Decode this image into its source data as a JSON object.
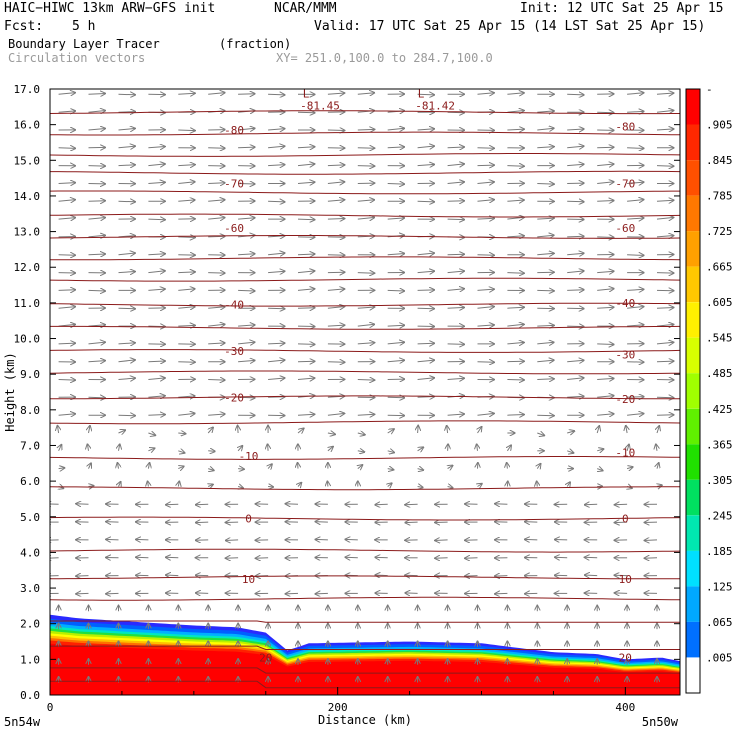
{
  "header": {
    "model": "HAIC−HIWC 13km ARW−GFS init",
    "org": "NCAR/MMM",
    "init": "Init: 12 UTC Sat 25 Apr 15",
    "fcst_label": "Fcst:",
    "fcst_value": "5 h",
    "valid": "Valid: 17 UTC Sat 25 Apr 15 (14 LST Sat 25 Apr 15)",
    "field": "Boundary Layer Tracer",
    "field_unit": "(fraction)",
    "overlay": "Circulation vectors",
    "xsect": "XY= 251.0,100.0 to 284.7,100.0"
  },
  "axes": {
    "ylabel": "Height (km)",
    "xlabel": "Distance (km)",
    "left_endpoint": "5n54w",
    "right_endpoint": "5n50w"
  },
  "colors": {
    "contour": "#8b1a1a",
    "vector": "#7a7a7a",
    "scale": [
      "#ffffff",
      "#7e0000",
      "#e0e0ff",
      "#3030ff",
      "#00c8ff",
      "#00ffa0",
      "#30e000",
      "#c8ff00",
      "#ffff00",
      "#ffb000",
      "#ff5000",
      "#ff0000"
    ]
  },
  "chart_data": {
    "type": "heatmap",
    "title": "Boundary Layer Tracer",
    "xlabel": "Distance (km)",
    "ylabel": "Height (km)",
    "xlim": [
      0,
      438
    ],
    "ylim": [
      0.0,
      17.0
    ],
    "x_ticks": [
      "0",
      "200",
      "400"
    ],
    "y_ticks": [
      "0.0",
      "1.0",
      "2.0",
      "3.0",
      "4.0",
      "5.0",
      "6.0",
      "7.0",
      "8.0",
      "9.0",
      "10.0",
      "11.0",
      "12.0",
      "13.0",
      "14.0",
      "15.0",
      "16.0",
      "17.0"
    ],
    "colorbar_labels": [
      "-",
      ".905",
      ".845",
      ".785",
      ".725",
      ".665",
      ".605",
      ".545",
      ".485",
      ".425",
      ".365",
      ".305",
      ".245",
      ".185",
      ".125",
      ".065",
      ".005"
    ],
    "tracer_top_km": {
      "x": [
        0,
        20,
        60,
        100,
        130,
        150,
        165,
        180,
        250,
        300,
        350,
        380,
        400,
        425,
        438
      ],
      "y": [
        2.25,
        2.15,
        2.05,
        1.95,
        1.9,
        1.75,
        1.25,
        1.45,
        1.5,
        1.45,
        1.2,
        1.15,
        1.0,
        1.05,
        0.95
      ]
    },
    "temperature_contours_c": {
      "labels": [
        {
          "text": "-80",
          "x": 128,
          "y": 15.85
        },
        {
          "text": "-80",
          "x": 400,
          "y": 15.95
        },
        {
          "text": "-70",
          "x": 128,
          "y": 14.35
        },
        {
          "text": "-70",
          "x": 400,
          "y": 14.35
        },
        {
          "text": "-60",
          "x": 128,
          "y": 13.1
        },
        {
          "text": "-60",
          "x": 400,
          "y": 13.1
        },
        {
          "text": "-40",
          "x": 128,
          "y": 10.95
        },
        {
          "text": "-40",
          "x": 400,
          "y": 11.0
        },
        {
          "text": "-30",
          "x": 128,
          "y": 9.65
        },
        {
          "text": "-30",
          "x": 400,
          "y": 9.55
        },
        {
          "text": "-20",
          "x": 128,
          "y": 8.35
        },
        {
          "text": "-20",
          "x": 400,
          "y": 8.3
        },
        {
          "text": "-10",
          "x": 138,
          "y": 6.7
        },
        {
          "text": "-10",
          "x": 400,
          "y": 6.8
        },
        {
          "text": "0",
          "x": 138,
          "y": 4.95
        },
        {
          "text": "0",
          "x": 400,
          "y": 4.95
        },
        {
          "text": "10",
          "x": 138,
          "y": 3.25
        },
        {
          "text": "10",
          "x": 400,
          "y": 3.25
        },
        {
          "text": "20",
          "x": 150,
          "y": 1.05
        },
        {
          "text": "20",
          "x": 400,
          "y": 1.05
        }
      ],
      "lines_km": [
        0.25,
        0.65,
        1.3,
        2.05,
        2.7,
        3.3,
        4.05,
        4.95,
        5.8,
        6.65,
        7.65,
        8.35,
        9.05,
        9.65,
        10.3,
        10.95,
        11.65,
        12.25,
        12.85,
        13.45,
        14.1,
        14.65,
        15.15,
        15.75,
        16.35
      ]
    },
    "minima": [
      {
        "label": "L",
        "value": "-81.45",
        "x": 178,
        "y": 16.9
      },
      {
        "label": "L",
        "value": "-81.42",
        "x": 258,
        "y": 16.9
      }
    ]
  }
}
